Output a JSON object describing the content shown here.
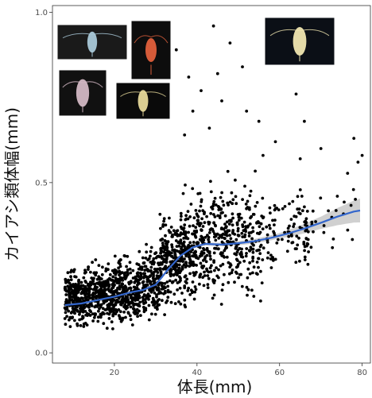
{
  "chart_data": {
    "type": "scatter",
    "title": "",
    "xlabel": "体長(mm)",
    "ylabel": "カイアシ類体幅(mm)",
    "xlim": [
      5,
      82
    ],
    "ylim": [
      -0.03,
      1.02
    ],
    "x_ticks": [
      {
        "value": 20,
        "label": "20"
      },
      {
        "value": 40,
        "label": "40"
      },
      {
        "value": 60,
        "label": "60"
      },
      {
        "value": 80,
        "label": "80"
      }
    ],
    "y_ticks": [
      {
        "value": 0.0,
        "label": "0.0"
      },
      {
        "value": 0.5,
        "label": "0.5"
      },
      {
        "value": 1.0,
        "label": "1.0"
      }
    ],
    "grid": false,
    "point_color": "#000000",
    "smooth_color": "#3366cc",
    "ribbon_color": "#c8c8c8",
    "smooth_curve": [
      {
        "x": 8,
        "y": 0.14
      },
      {
        "x": 12,
        "y": 0.145
      },
      {
        "x": 16,
        "y": 0.155
      },
      {
        "x": 20,
        "y": 0.165
      },
      {
        "x": 24,
        "y": 0.178
      },
      {
        "x": 27,
        "y": 0.185
      },
      {
        "x": 30,
        "y": 0.2
      },
      {
        "x": 33,
        "y": 0.245
      },
      {
        "x": 36,
        "y": 0.285
      },
      {
        "x": 39,
        "y": 0.31
      },
      {
        "x": 42,
        "y": 0.32
      },
      {
        "x": 46,
        "y": 0.318
      },
      {
        "x": 50,
        "y": 0.322
      },
      {
        "x": 54,
        "y": 0.328
      },
      {
        "x": 58,
        "y": 0.338
      },
      {
        "x": 62,
        "y": 0.35
      },
      {
        "x": 66,
        "y": 0.365
      },
      {
        "x": 70,
        "y": 0.382
      },
      {
        "x": 74,
        "y": 0.4
      },
      {
        "x": 78,
        "y": 0.415
      },
      {
        "x": 79.5,
        "y": 0.418
      }
    ],
    "ribbon_halfwidth": [
      {
        "x": 8,
        "w": 0.006
      },
      {
        "x": 40,
        "w": 0.004
      },
      {
        "x": 60,
        "w": 0.008
      },
      {
        "x": 70,
        "w": 0.018
      },
      {
        "x": 79.5,
        "w": 0.035
      }
    ],
    "point_clusters": [
      {
        "x": [
          8,
          13
        ],
        "center": 0.16,
        "spread": 0.06,
        "count": 220
      },
      {
        "x": [
          13,
          20
        ],
        "center": 0.17,
        "spread": 0.065,
        "count": 300
      },
      {
        "x": [
          20,
          26
        ],
        "center": 0.18,
        "spread": 0.07,
        "count": 260
      },
      {
        "x": [
          26,
          31
        ],
        "center": 0.21,
        "spread": 0.08,
        "count": 180
      },
      {
        "x": [
          31,
          36
        ],
        "center": 0.27,
        "spread": 0.1,
        "count": 200
      },
      {
        "x": [
          36,
          40
        ],
        "center": 0.3,
        "spread": 0.11,
        "count": 160
      },
      {
        "x": [
          40,
          45
        ],
        "center": 0.33,
        "spread": 0.12,
        "count": 140
      },
      {
        "x": [
          45,
          50
        ],
        "center": 0.33,
        "spread": 0.12,
        "count": 130
      },
      {
        "x": [
          50,
          56
        ],
        "center": 0.33,
        "spread": 0.12,
        "count": 120
      },
      {
        "x": [
          56,
          62
        ],
        "center": 0.34,
        "spread": 0.09,
        "count": 40
      },
      {
        "x": [
          62,
          67
        ],
        "center": 0.36,
        "spread": 0.1,
        "count": 60
      },
      {
        "x": [
          67,
          73
        ],
        "center": 0.38,
        "spread": 0.08,
        "count": 12
      },
      {
        "x": [
          73,
          80
        ],
        "center": 0.42,
        "spread": 0.08,
        "count": 10
      }
    ],
    "outlier_points": [
      {
        "x": 44,
        "y": 0.96
      },
      {
        "x": 48,
        "y": 0.91
      },
      {
        "x": 51,
        "y": 0.84
      },
      {
        "x": 35,
        "y": 0.89
      },
      {
        "x": 38,
        "y": 0.81
      },
      {
        "x": 41,
        "y": 0.77
      },
      {
        "x": 46,
        "y": 0.74
      },
      {
        "x": 52,
        "y": 0.71
      },
      {
        "x": 55,
        "y": 0.68
      },
      {
        "x": 43,
        "y": 0.66
      },
      {
        "x": 37,
        "y": 0.64
      },
      {
        "x": 56,
        "y": 0.58
      },
      {
        "x": 59,
        "y": 0.62
      },
      {
        "x": 64,
        "y": 0.76
      },
      {
        "x": 66,
        "y": 0.68
      },
      {
        "x": 70,
        "y": 0.6
      },
      {
        "x": 74,
        "y": 0.46
      },
      {
        "x": 78,
        "y": 0.63
      },
      {
        "x": 79,
        "y": 0.56
      },
      {
        "x": 80,
        "y": 0.58
      },
      {
        "x": 65,
        "y": 0.57
      },
      {
        "x": 45,
        "y": 0.82
      },
      {
        "x": 39,
        "y": 0.71
      },
      {
        "x": 33,
        "y": 0.78
      }
    ],
    "inset_photos": [
      {
        "name": "copepod-photo-1",
        "background": "#1a1a1a",
        "subject": "#a9c8d8"
      },
      {
        "name": "copepod-photo-2",
        "background": "#0d0d0d",
        "subject": "#e0603c"
      },
      {
        "name": "copepod-photo-3",
        "background": "#111111",
        "subject": "#d3b8c4"
      },
      {
        "name": "copepod-photo-4",
        "background": "#0a0a0a",
        "subject": "#e6d89a"
      },
      {
        "name": "copepod-photo-5",
        "background": "#0b0f16",
        "subject": "#f0e6b0"
      }
    ]
  }
}
